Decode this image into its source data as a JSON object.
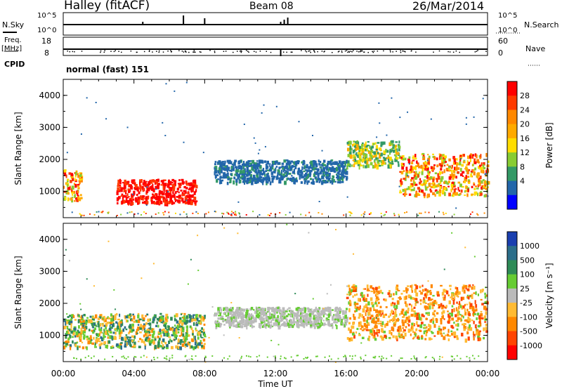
{
  "header": {
    "station": "Halley (fitACF)",
    "beam": "Beam 08",
    "date": "26/Mar/2014"
  },
  "top_panels": {
    "nsky_label": "N.Sky",
    "nsky_ticks": [
      "10^5",
      "10^0"
    ],
    "nsearch_label": "N.Search",
    "nsearch_ticks": [
      "10^5",
      "10^0"
    ],
    "freq_label": "Freq.",
    "freq_unit": "[MHz]",
    "freq_ticks": [
      "18",
      "8"
    ],
    "nave_label": "Nave",
    "nave_ticks": [
      "60",
      "0"
    ],
    "cpid_label": "CPID",
    "cpid_value": "normal (fast) 151"
  },
  "chart_data": [
    {
      "type": "heatmap",
      "name": "power",
      "ylabel": "Slant Range [km]",
      "xlabel": "Time UT",
      "xlim_hours": [
        0,
        24
      ],
      "ylim_km": [
        180,
        4500
      ],
      "y_ticks": [
        "4000",
        "3000",
        "2000",
        "1000"
      ],
      "x_ticks": [
        "00:00",
        "04:00",
        "08:00",
        "12:00",
        "16:00",
        "20:00",
        "00:00"
      ],
      "colorbar_label": "Power [dB]",
      "colorbar_ticks": [
        "28",
        "24",
        "20",
        "16",
        "12",
        "8",
        "4"
      ],
      "colorbar_colors": [
        "#ff0000",
        "#ff3a00",
        "#ff8800",
        "#ffaa00",
        "#ffdd00",
        "#88cc33",
        "#339966",
        "#2266aa",
        "#0000ff"
      ],
      "features": [
        {
          "t": [
            0.0,
            1.0
          ],
          "r": [
            700,
            1700
          ],
          "level": "high"
        },
        {
          "t": [
            3.0,
            7.5
          ],
          "r": [
            650,
            1400
          ],
          "level": "very-high"
        },
        {
          "t": [
            8.5,
            16.0
          ],
          "r": [
            1300,
            2000
          ],
          "level": "low"
        },
        {
          "t": [
            16.0,
            19.0
          ],
          "r": [
            1800,
            2600
          ],
          "level": "medium"
        },
        {
          "t": [
            19.0,
            24.0
          ],
          "r": [
            900,
            2200
          ],
          "level": "high"
        }
      ]
    },
    {
      "type": "heatmap",
      "name": "velocity",
      "ylabel": "Slant Range [km]",
      "xlabel": "Time UT",
      "xlim_hours": [
        0,
        24
      ],
      "ylim_km": [
        180,
        4500
      ],
      "y_ticks": [
        "4000",
        "3000",
        "2000",
        "1000"
      ],
      "x_ticks": [
        "00:00",
        "04:00",
        "08:00",
        "12:00",
        "16:00",
        "20:00",
        "00:00"
      ],
      "colorbar_label": "Velocity [m s⁻¹]",
      "colorbar_ticks": [
        "1000",
        "500",
        "100",
        "25",
        "-25",
        "-100",
        "-500",
        "-1000"
      ],
      "colorbar_colors": [
        "#1a3fb0",
        "#2b6e8a",
        "#2e8b57",
        "#66cc33",
        "#bbbbbb",
        "#ffbb33",
        "#ff8800",
        "#ff4400",
        "#ff0000"
      ],
      "features": [
        {
          "t": [
            0.0,
            8.0
          ],
          "r": [
            650,
            1700
          ],
          "velocity": "mixed"
        },
        {
          "t": [
            8.5,
            16.0
          ],
          "r": [
            1300,
            1900
          ],
          "velocity": "near-zero"
        },
        {
          "t": [
            16.0,
            24.0
          ],
          "r": [
            900,
            2600
          ],
          "velocity": "negative"
        }
      ]
    }
  ]
}
